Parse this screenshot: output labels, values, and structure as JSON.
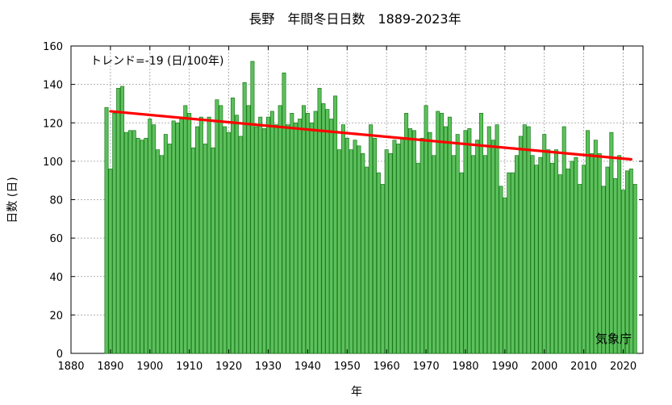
{
  "chart_data": {
    "type": "bar",
    "title": "長野　年間冬日日数　1889-2023年",
    "xlabel": "年",
    "ylabel": "日数 (日)",
    "annotation": "トレンド=-19 (日/100年)",
    "credit": "気象庁",
    "xlim": [
      1880,
      2025
    ],
    "ylim": [
      0,
      160
    ],
    "xticks": [
      1880,
      1890,
      1900,
      1910,
      1920,
      1930,
      1940,
      1950,
      1960,
      1970,
      1980,
      1990,
      2000,
      2010,
      2020
    ],
    "yticks": [
      0,
      20,
      40,
      60,
      80,
      100,
      120,
      140,
      160
    ],
    "grid": true,
    "bar_color": "#5cc05c",
    "bar_edge_color": "#1a7a1a",
    "trend_color": "#ff0000",
    "trend": {
      "x": [
        1890,
        2022
      ],
      "y": [
        126,
        101
      ]
    },
    "x": [
      1889,
      1890,
      1891,
      1892,
      1893,
      1894,
      1895,
      1896,
      1897,
      1898,
      1899,
      1900,
      1901,
      1902,
      1903,
      1904,
      1905,
      1906,
      1907,
      1908,
      1909,
      1910,
      1911,
      1912,
      1913,
      1914,
      1915,
      1916,
      1917,
      1918,
      1919,
      1920,
      1921,
      1922,
      1923,
      1924,
      1925,
      1926,
      1927,
      1928,
      1929,
      1930,
      1931,
      1932,
      1933,
      1934,
      1935,
      1936,
      1937,
      1938,
      1939,
      1940,
      1941,
      1942,
      1943,
      1944,
      1945,
      1946,
      1947,
      1948,
      1949,
      1950,
      1951,
      1952,
      1953,
      1954,
      1955,
      1956,
      1957,
      1958,
      1959,
      1960,
      1961,
      1962,
      1963,
      1964,
      1965,
      1966,
      1967,
      1968,
      1969,
      1970,
      1971,
      1972,
      1973,
      1974,
      1975,
      1976,
      1977,
      1978,
      1979,
      1980,
      1981,
      1982,
      1983,
      1984,
      1985,
      1986,
      1987,
      1988,
      1989,
      1990,
      1991,
      1992,
      1993,
      1994,
      1995,
      1996,
      1997,
      1998,
      1999,
      2000,
      2001,
      2002,
      2003,
      2004,
      2005,
      2006,
      2007,
      2008,
      2009,
      2010,
      2011,
      2012,
      2013,
      2014,
      2015,
      2016,
      2017,
      2018,
      2019,
      2020,
      2021,
      2022,
      2023
    ],
    "values": [
      128,
      96,
      125,
      138,
      139,
      115,
      116,
      116,
      112,
      111,
      112,
      122,
      119,
      106,
      103,
      114,
      109,
      121,
      120,
      122,
      129,
      125,
      107,
      118,
      123,
      109,
      123,
      107,
      132,
      129,
      118,
      115,
      133,
      124,
      113,
      141,
      129,
      152,
      118,
      123,
      117,
      123,
      126,
      119,
      129,
      146,
      119,
      125,
      120,
      122,
      129,
      125,
      120,
      126,
      138,
      130,
      127,
      122,
      134,
      106,
      119,
      112,
      106,
      111,
      108,
      104,
      97,
      119,
      112,
      94,
      88,
      106,
      104,
      111,
      109,
      112,
      125,
      117,
      116,
      99,
      112,
      129,
      115,
      103,
      126,
      125,
      118,
      123,
      103,
      114,
      94,
      116,
      117,
      103,
      111,
      125,
      103,
      118,
      111,
      119,
      87,
      81,
      94,
      94,
      103,
      113,
      119,
      118,
      103,
      98,
      102,
      114,
      106,
      99,
      106,
      93,
      118,
      96,
      100,
      102,
      88,
      98,
      116,
      104,
      111,
      104,
      87,
      97,
      115,
      91,
      103,
      85,
      95,
      96,
      88
    ]
  }
}
